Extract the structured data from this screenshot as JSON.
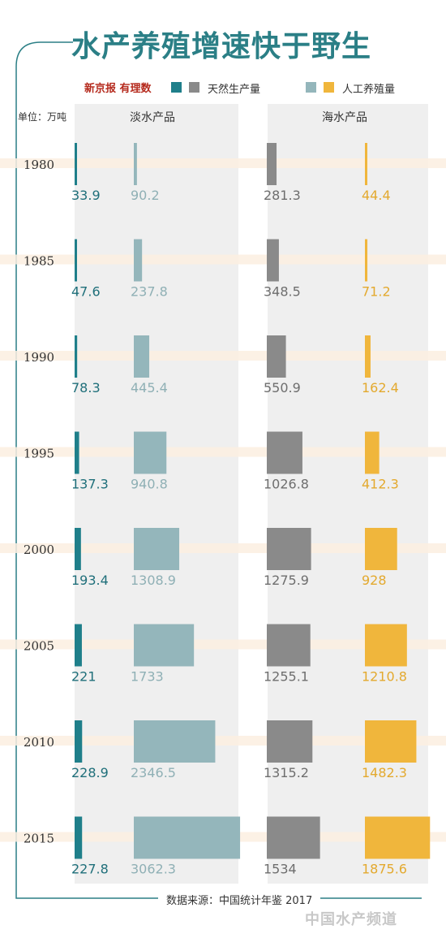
{
  "header": {
    "title": "水产养殖增速快于野生",
    "brand": "新京报 有理数"
  },
  "legend": [
    {
      "label": "天然生产量",
      "swatches": [
        "#1f7f8a",
        "#8a8a8a"
      ]
    },
    {
      "label": "人工养殖量",
      "swatches": [
        "#94b6bb",
        "#f0b63c"
      ]
    }
  ],
  "unit_label": "单位：万吨",
  "columns": {
    "freshwater": "淡水产品",
    "marine": "海水产品"
  },
  "source_label": "数据来源：中国统计年鉴 2017",
  "watermark": "中国水产频道",
  "colors": {
    "accent": "#2b7f86",
    "freshwater_wild": "#1f7f8a",
    "freshwater_farmed": "#94b6bb",
    "marine_wild": "#8a8a8a",
    "marine_farmed": "#f0b63c",
    "stripe": "#fbeee0",
    "panel": "#efefef"
  },
  "chart_data": {
    "type": "bar",
    "title": "水产养殖增速快于野生",
    "unit": "万吨",
    "categories": [
      "1980",
      "1985",
      "1990",
      "1995",
      "2000",
      "2005",
      "2010",
      "2015"
    ],
    "series": [
      {
        "name": "淡水产品 天然生产量",
        "group": "淡水产品",
        "values": [
          33.9,
          47.6,
          78.3,
          137.3,
          193.4,
          221,
          228.9,
          227.8
        ]
      },
      {
        "name": "淡水产品 人工养殖量",
        "group": "淡水产品",
        "values": [
          90.2,
          237.8,
          445.4,
          940.8,
          1308.9,
          1733,
          2346.5,
          3062.3
        ]
      },
      {
        "name": "海水产品 天然生产量",
        "group": "海水产品",
        "values": [
          281.3,
          348.5,
          550.9,
          1026.8,
          1275.9,
          1255.1,
          1315.2,
          1534
        ]
      },
      {
        "name": "海水产品 人工养殖量",
        "group": "海水产品",
        "values": [
          44.4,
          71.2,
          162.4,
          412.3,
          928,
          1210.8,
          1482.3,
          1875.6
        ]
      }
    ],
    "value_labels": [
      [
        "33.9",
        "47.6",
        "78.3",
        "137.3",
        "193.4",
        "221",
        "228.9",
        "227.8"
      ],
      [
        "90.2",
        "237.8",
        "445.4",
        "940.8",
        "1308.9",
        "1733",
        "2346.5",
        "3062.3"
      ],
      [
        "281.3",
        "348.5",
        "550.9",
        "1026.8",
        "1275.9",
        "1255.1",
        "1315.2",
        "1534"
      ],
      [
        "44.4",
        "71.2",
        "162.4",
        "412.3",
        "928",
        "1210.8",
        "1482.3",
        "1875.6"
      ]
    ],
    "grid": false,
    "legend_position": "top"
  }
}
